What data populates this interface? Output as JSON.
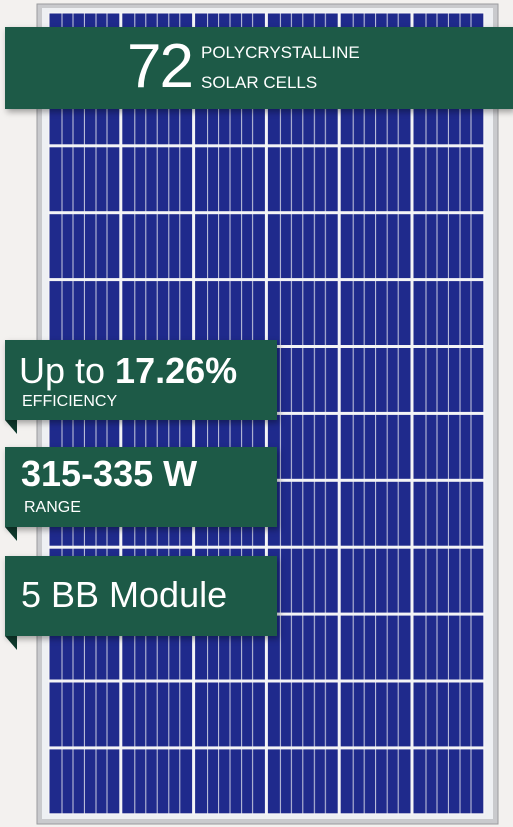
{
  "headline": {
    "number": "72",
    "line1": "POLYCRYSTALLINE",
    "line2": "SOLAR CELLS"
  },
  "badges": [
    {
      "prefix": "Up to ",
      "highlight": "17.26%",
      "caption": "EFFICIENCY"
    },
    {
      "highlight": "315-335 W",
      "caption": "RANGE"
    },
    {
      "prefix": "5 BB Module"
    }
  ]
}
